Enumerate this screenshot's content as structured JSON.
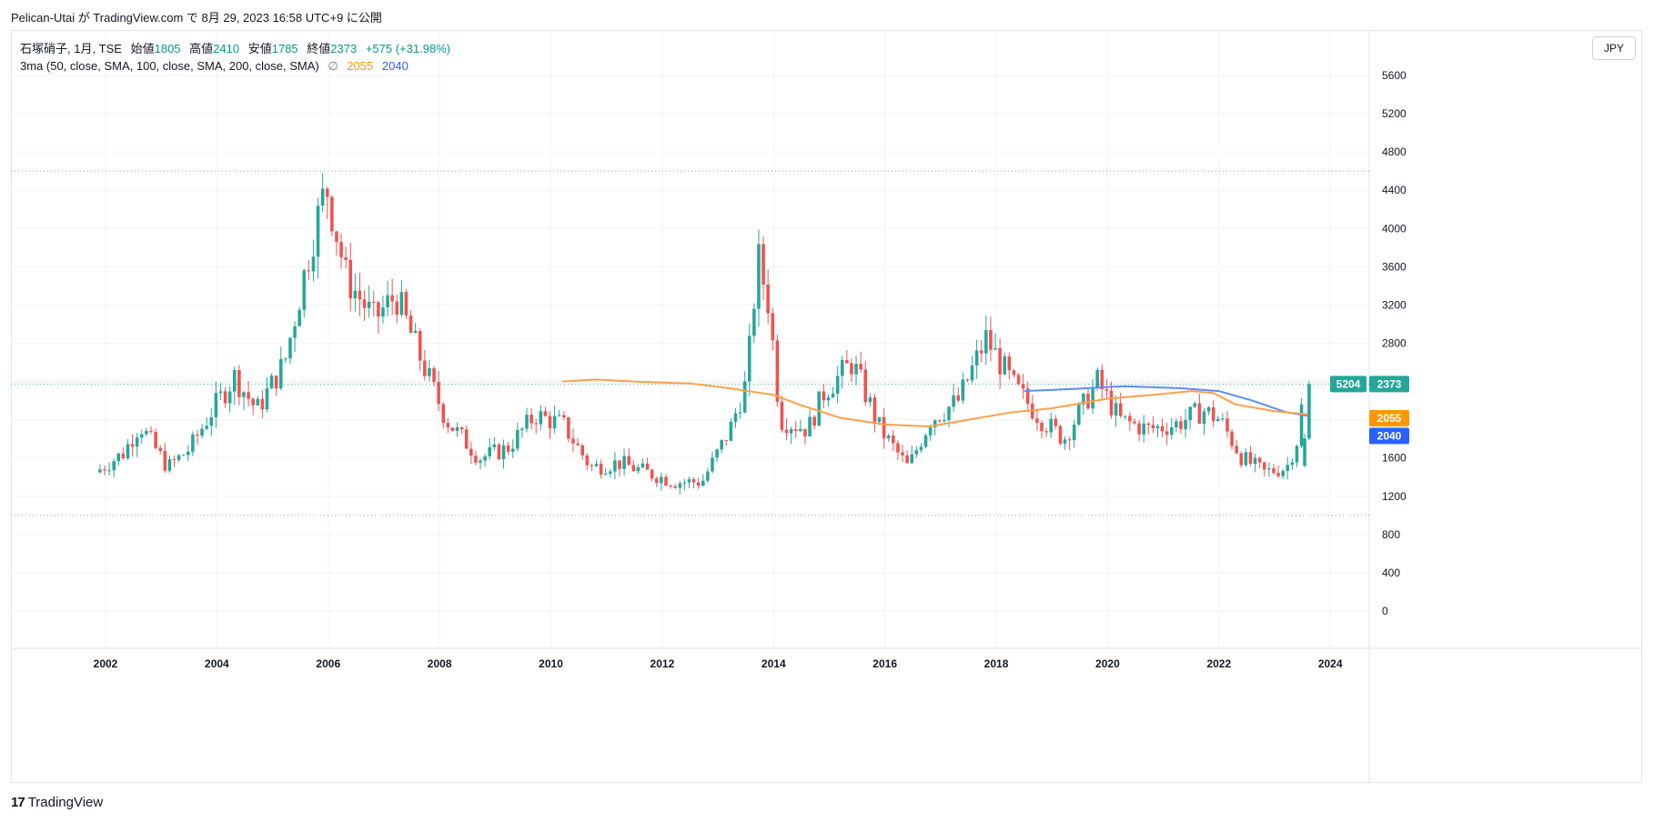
{
  "header": {
    "published_line": "Pelican-Utai が TradingView.com で 8月 29, 2023 16:58 UTC+9 に公開"
  },
  "legend": {
    "symbol_line": "石塚硝子, 1月, TSE",
    "open_label": "始値",
    "open_value": "1805",
    "high_label": "高値",
    "high_value": "2410",
    "low_label": "安値",
    "low_value": "1785",
    "close_label": "終値",
    "close_value": "2373",
    "change": "+575 (+31.98%)",
    "indicator": "3ma (50, close, SMA, 100, close, SMA, 200, close, SMA)",
    "hidden_icon": "∅",
    "ma50_value": "2055",
    "ma100_value": "2040"
  },
  "currency_button": "JPY",
  "brand": {
    "logo": "17",
    "name": "TradingView"
  },
  "price_labels": {
    "last_left": "5204",
    "last_right": "2373",
    "ma50": "2055",
    "ma100": "2040"
  },
  "colors": {
    "up": "#26a69a",
    "down": "#ef5350",
    "ma50": "#ffa04d",
    "ma100": "#5b8cff",
    "last": "#26a69a"
  },
  "chart_data": {
    "type": "candlestick",
    "interval": "1M",
    "y_ticks": [
      0,
      400,
      800,
      1200,
      1600,
      2000,
      2400,
      2800,
      3200,
      3600,
      4000,
      4400,
      4800,
      5200,
      5600
    ],
    "x_ticks": [
      "2002",
      "2004",
      "2006",
      "2008",
      "2010",
      "2012",
      "2014",
      "2016",
      "2018",
      "2020",
      "2022",
      "2024"
    ],
    "ylim": [
      -390,
      5790
    ],
    "xlim": [
      2000.3,
      2024.7
    ],
    "reference_lines": [
      4600,
      1000,
      2373
    ],
    "anchors": [
      [
        2001.9,
        1450
      ],
      [
        2002.4,
        1650
      ],
      [
        2002.7,
        1950
      ],
      [
        2003.2,
        1500
      ],
      [
        2003.6,
        1700
      ],
      [
        2004.0,
        2100
      ],
      [
        2004.4,
        2450
      ],
      [
        2004.8,
        2100
      ],
      [
        2005.3,
        2600
      ],
      [
        2005.8,
        3900
      ],
      [
        2006.05,
        4450
      ],
      [
        2006.4,
        3500
      ],
      [
        2006.9,
        3050
      ],
      [
        2007.3,
        3300
      ],
      [
        2007.7,
        2700
      ],
      [
        2008.2,
        2000
      ],
      [
        2008.8,
        1600
      ],
      [
        2009.3,
        1700
      ],
      [
        2009.8,
        2050
      ],
      [
        2010.3,
        1950
      ],
      [
        2010.8,
        1500
      ],
      [
        2011.3,
        1550
      ],
      [
        2011.8,
        1450
      ],
      [
        2012.3,
        1350
      ],
      [
        2012.8,
        1350
      ],
      [
        2013.3,
        1900
      ],
      [
        2013.6,
        2400
      ],
      [
        2013.8,
        3700
      ],
      [
        2014.0,
        3200
      ],
      [
        2014.2,
        2000
      ],
      [
        2014.7,
        1900
      ],
      [
        2015.0,
        2300
      ],
      [
        2015.5,
        2600
      ],
      [
        2016.0,
        1900
      ],
      [
        2016.5,
        1500
      ],
      [
        2016.9,
        2000
      ],
      [
        2017.4,
        2200
      ],
      [
        2017.9,
        2850
      ],
      [
        2018.4,
        2350
      ],
      [
        2018.9,
        2000
      ],
      [
        2019.3,
        1800
      ],
      [
        2019.9,
        2400
      ],
      [
        2020.3,
        2000
      ],
      [
        2020.8,
        1900
      ],
      [
        2021.3,
        1950
      ],
      [
        2021.8,
        2100
      ],
      [
        2022.1,
        2000
      ],
      [
        2022.5,
        1600
      ],
      [
        2022.9,
        1450
      ],
      [
        2023.3,
        1500
      ],
      [
        2023.5,
        1805
      ],
      [
        2023.62,
        2373
      ]
    ],
    "ma50": [
      [
        2010.2,
        2400
      ],
      [
        2010.8,
        2420
      ],
      [
        2011.5,
        2400
      ],
      [
        2012.5,
        2380
      ],
      [
        2013.2,
        2330
      ],
      [
        2014.0,
        2260
      ],
      [
        2014.5,
        2150
      ],
      [
        2015.2,
        2020
      ],
      [
        2016.0,
        1950
      ],
      [
        2016.8,
        1930
      ],
      [
        2017.5,
        2000
      ],
      [
        2018.3,
        2080
      ],
      [
        2019.0,
        2120
      ],
      [
        2020.0,
        2220
      ],
      [
        2020.8,
        2260
      ],
      [
        2021.5,
        2300
      ],
      [
        2021.9,
        2280
      ],
      [
        2022.3,
        2160
      ],
      [
        2023.0,
        2090
      ],
      [
        2023.6,
        2055
      ]
    ],
    "ma100": [
      [
        2018.5,
        2300
      ],
      [
        2019.3,
        2320
      ],
      [
        2020.3,
        2350
      ],
      [
        2021.3,
        2330
      ],
      [
        2022.0,
        2300
      ],
      [
        2022.6,
        2200
      ],
      [
        2023.2,
        2080
      ],
      [
        2023.6,
        2040
      ]
    ]
  }
}
